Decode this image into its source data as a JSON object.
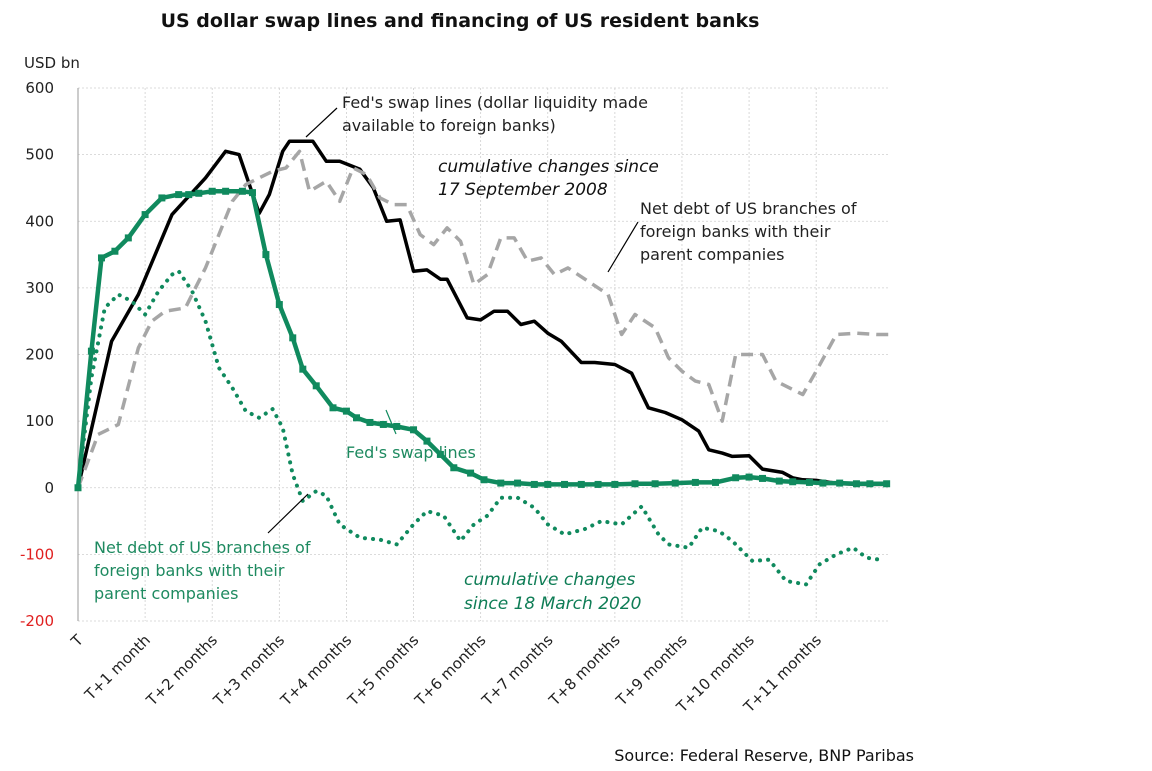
{
  "chart_data": {
    "type": "line",
    "title": "US dollar swap lines and financing of US resident banks",
    "ylabel": "USD bn",
    "ylim": [
      -200,
      600
    ],
    "yticks": [
      600,
      500,
      400,
      300,
      200,
      100,
      0,
      -100,
      -200
    ],
    "x_categories": [
      "T",
      "T+1 month",
      "T+2 months",
      "T+3 months",
      "T+4 months",
      "T+5 months",
      "T+6 months",
      "T+7 months",
      "T+8 months",
      "T+9 months",
      "T+10 months",
      "T+11 months"
    ],
    "x_units": "months since T",
    "xlim": [
      0,
      12.1
    ],
    "series": [
      {
        "name": "Fed's swap lines (dollar liquidity made available to foreign banks) — 2008",
        "color": "#000000",
        "style": "solid",
        "x": [
          0,
          0.5,
          0.9,
          1.4,
          1.9,
          2.2,
          2.4,
          2.7,
          2.85,
          3.05,
          3.15,
          3.5,
          3.7,
          3.9,
          4.2,
          4.4,
          4.6,
          4.8,
          5.0,
          5.2,
          5.4,
          5.5,
          5.8,
          6.0,
          6.2,
          6.4,
          6.6,
          6.8,
          7.0,
          7.2,
          7.5,
          7.7,
          8.0,
          8.25,
          8.5,
          8.75,
          9.0,
          9.25,
          9.4,
          9.6,
          9.75,
          10.0,
          10.2,
          10.5,
          10.65,
          10.8,
          11.0,
          11.2,
          11.4,
          11.65,
          11.9,
          12.05
        ],
        "values": [
          0,
          220,
          290,
          410,
          465,
          505,
          500,
          412,
          440,
          505,
          520,
          520,
          490,
          490,
          478,
          450,
          400,
          402,
          325,
          327,
          313,
          313,
          255,
          252,
          265,
          265,
          245,
          250,
          232,
          220,
          188,
          188,
          185,
          172,
          120,
          113,
          102,
          85,
          57,
          52,
          47,
          48,
          28,
          23,
          15,
          12,
          11,
          8,
          6,
          5,
          5,
          5
        ]
      },
      {
        "name": "Net debt of US branches of foreign banks with their parent companies — 2008",
        "color": "#a6a6a6",
        "style": "dashed",
        "x": [
          0,
          0.3,
          0.6,
          0.9,
          1.1,
          1.3,
          1.6,
          1.9,
          2.1,
          2.3,
          2.5,
          2.7,
          2.9,
          3.1,
          3.3,
          3.45,
          3.7,
          3.9,
          4.1,
          4.3,
          4.5,
          4.7,
          4.9,
          5.1,
          5.3,
          5.5,
          5.7,
          5.9,
          6.1,
          6.3,
          6.5,
          6.7,
          6.9,
          7.1,
          7.3,
          7.6,
          7.9,
          8.1,
          8.3,
          8.6,
          8.8,
          9.0,
          9.2,
          9.4,
          9.6,
          9.8,
          10.0,
          10.2,
          10.4,
          10.6,
          10.8,
          11.0,
          11.3,
          11.6,
          11.9,
          12.1
        ],
        "values": [
          0,
          80,
          95,
          210,
          250,
          265,
          270,
          330,
          380,
          430,
          455,
          465,
          475,
          480,
          505,
          445,
          460,
          430,
          480,
          470,
          435,
          425,
          425,
          380,
          365,
          390,
          370,
          305,
          320,
          375,
          375,
          340,
          345,
          320,
          330,
          310,
          290,
          230,
          260,
          240,
          195,
          175,
          160,
          155,
          100,
          200,
          200,
          200,
          160,
          150,
          140,
          175,
          230,
          232,
          230,
          230
        ]
      },
      {
        "name": "Fed's swap lines — 2020",
        "color": "#108a5e",
        "style": "solid-thick",
        "x": [
          0,
          0.2,
          0.35,
          0.55,
          0.75,
          1.0,
          1.25,
          1.5,
          1.65,
          1.8,
          2.0,
          2.2,
          2.45,
          2.6,
          2.8,
          3.0,
          3.2,
          3.35,
          3.55,
          3.8,
          4.0,
          4.15,
          4.35,
          4.55,
          4.75,
          5.0,
          5.2,
          5.4,
          5.6,
          5.85,
          6.05,
          6.3,
          6.55,
          6.8,
          7.0,
          7.25,
          7.5,
          7.75,
          8.0,
          8.3,
          8.6,
          8.9,
          9.2,
          9.5,
          9.8,
          10.0,
          10.2,
          10.45,
          10.65,
          10.9,
          11.1,
          11.35,
          11.6,
          11.8,
          12.05
        ],
        "values": [
          0,
          205,
          345,
          355,
          375,
          410,
          435,
          440,
          440,
          442,
          445,
          445,
          445,
          443,
          350,
          275,
          225,
          178,
          153,
          120,
          115,
          105,
          98,
          95,
          92,
          87,
          70,
          50,
          30,
          22,
          12,
          7,
          7,
          5,
          5,
          5,
          5,
          5,
          5,
          6,
          6,
          7,
          8,
          8,
          15,
          16,
          14,
          10,
          9,
          8,
          7,
          7,
          6,
          6,
          6
        ]
      },
      {
        "name": "Net debt of US branches of foreign banks with their parent companies — 2020",
        "color": "#108a5e",
        "style": "dotted",
        "x": [
          0,
          0.2,
          0.4,
          0.6,
          0.8,
          1.0,
          1.2,
          1.4,
          1.5,
          1.7,
          1.9,
          2.1,
          2.3,
          2.5,
          2.7,
          2.9,
          3.05,
          3.2,
          3.35,
          3.55,
          3.7,
          3.9,
          4.2,
          4.5,
          4.75,
          5.0,
          5.2,
          5.45,
          5.7,
          5.9,
          6.1,
          6.3,
          6.55,
          6.8,
          7.0,
          7.25,
          7.55,
          7.8,
          8.1,
          8.4,
          8.65,
          8.8,
          9.1,
          9.3,
          9.55,
          9.75,
          10.05,
          10.3,
          10.55,
          10.85,
          11.05,
          11.3,
          11.55,
          11.75,
          11.95
        ],
        "values": [
          0,
          165,
          270,
          290,
          280,
          260,
          295,
          320,
          325,
          295,
          250,
          180,
          150,
          115,
          105,
          118,
          90,
          20,
          -20,
          -5,
          -12,
          -55,
          -75,
          -78,
          -85,
          -55,
          -35,
          -42,
          -80,
          -55,
          -42,
          -15,
          -15,
          -30,
          -55,
          -70,
          -62,
          -50,
          -55,
          -28,
          -70,
          -85,
          -90,
          -60,
          -65,
          -80,
          -110,
          -108,
          -140,
          -145,
          -115,
          -100,
          -90,
          -105,
          -108
        ]
      }
    ],
    "annotations": {
      "fed_2008": [
        "Fed's swap lines (dollar liquidity made",
        "available to foreign banks)"
      ],
      "period_2008": [
        "cumulative changes since",
        "17 September  2008"
      ],
      "netdebt_2008": [
        "Net debt of US branches of",
        "foreign banks with their",
        "parent companies"
      ],
      "fed_2020": "Fed's swap lines",
      "netdebt_2020": [
        "Net debt of US branches of",
        "foreign banks with their",
        "parent companies"
      ],
      "period_2020": [
        "cumulative  changes",
        "since 18 March 2020"
      ]
    },
    "source": "Source: Federal Reserve, BNP Paribas"
  },
  "colors": {
    "negative_tick": "#e02020",
    "green": "#108a5e",
    "grey": "#a6a6a6",
    "black": "#000000"
  }
}
